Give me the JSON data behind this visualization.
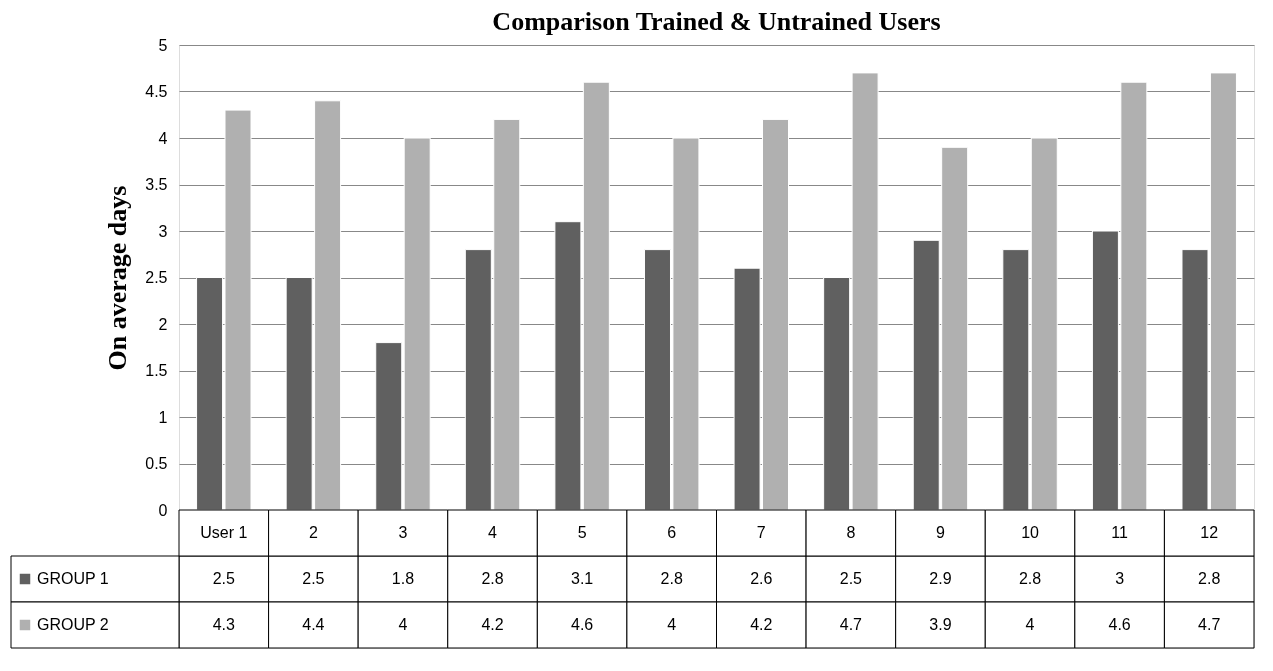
{
  "chart_data": {
    "type": "bar",
    "title": "Comparison Trained & Untrained Users",
    "ylabel": "On average days",
    "categories": [
      "User 1",
      "2",
      "3",
      "4",
      "5",
      "6",
      "7",
      "8",
      "9",
      "10",
      "11",
      "12"
    ],
    "series": [
      {
        "name": "GROUP 1",
        "color": "#606060",
        "values": [
          2.5,
          2.5,
          1.8,
          2.8,
          3.1,
          2.8,
          2.6,
          2.5,
          2.9,
          2.8,
          3,
          2.8
        ]
      },
      {
        "name": "GROUP 2",
        "color": "#b0b0b0",
        "values": [
          4.3,
          4.4,
          4,
          4.2,
          4.6,
          4,
          4.2,
          4.7,
          3.9,
          4,
          4.6,
          4.7
        ]
      }
    ],
    "ylim": [
      0,
      5
    ],
    "yticks": [
      0,
      0.5,
      1,
      1.5,
      2,
      2.5,
      3,
      3.5,
      4,
      4.5,
      5
    ],
    "grid": "y",
    "legend": "bottom",
    "data_labels": true
  }
}
